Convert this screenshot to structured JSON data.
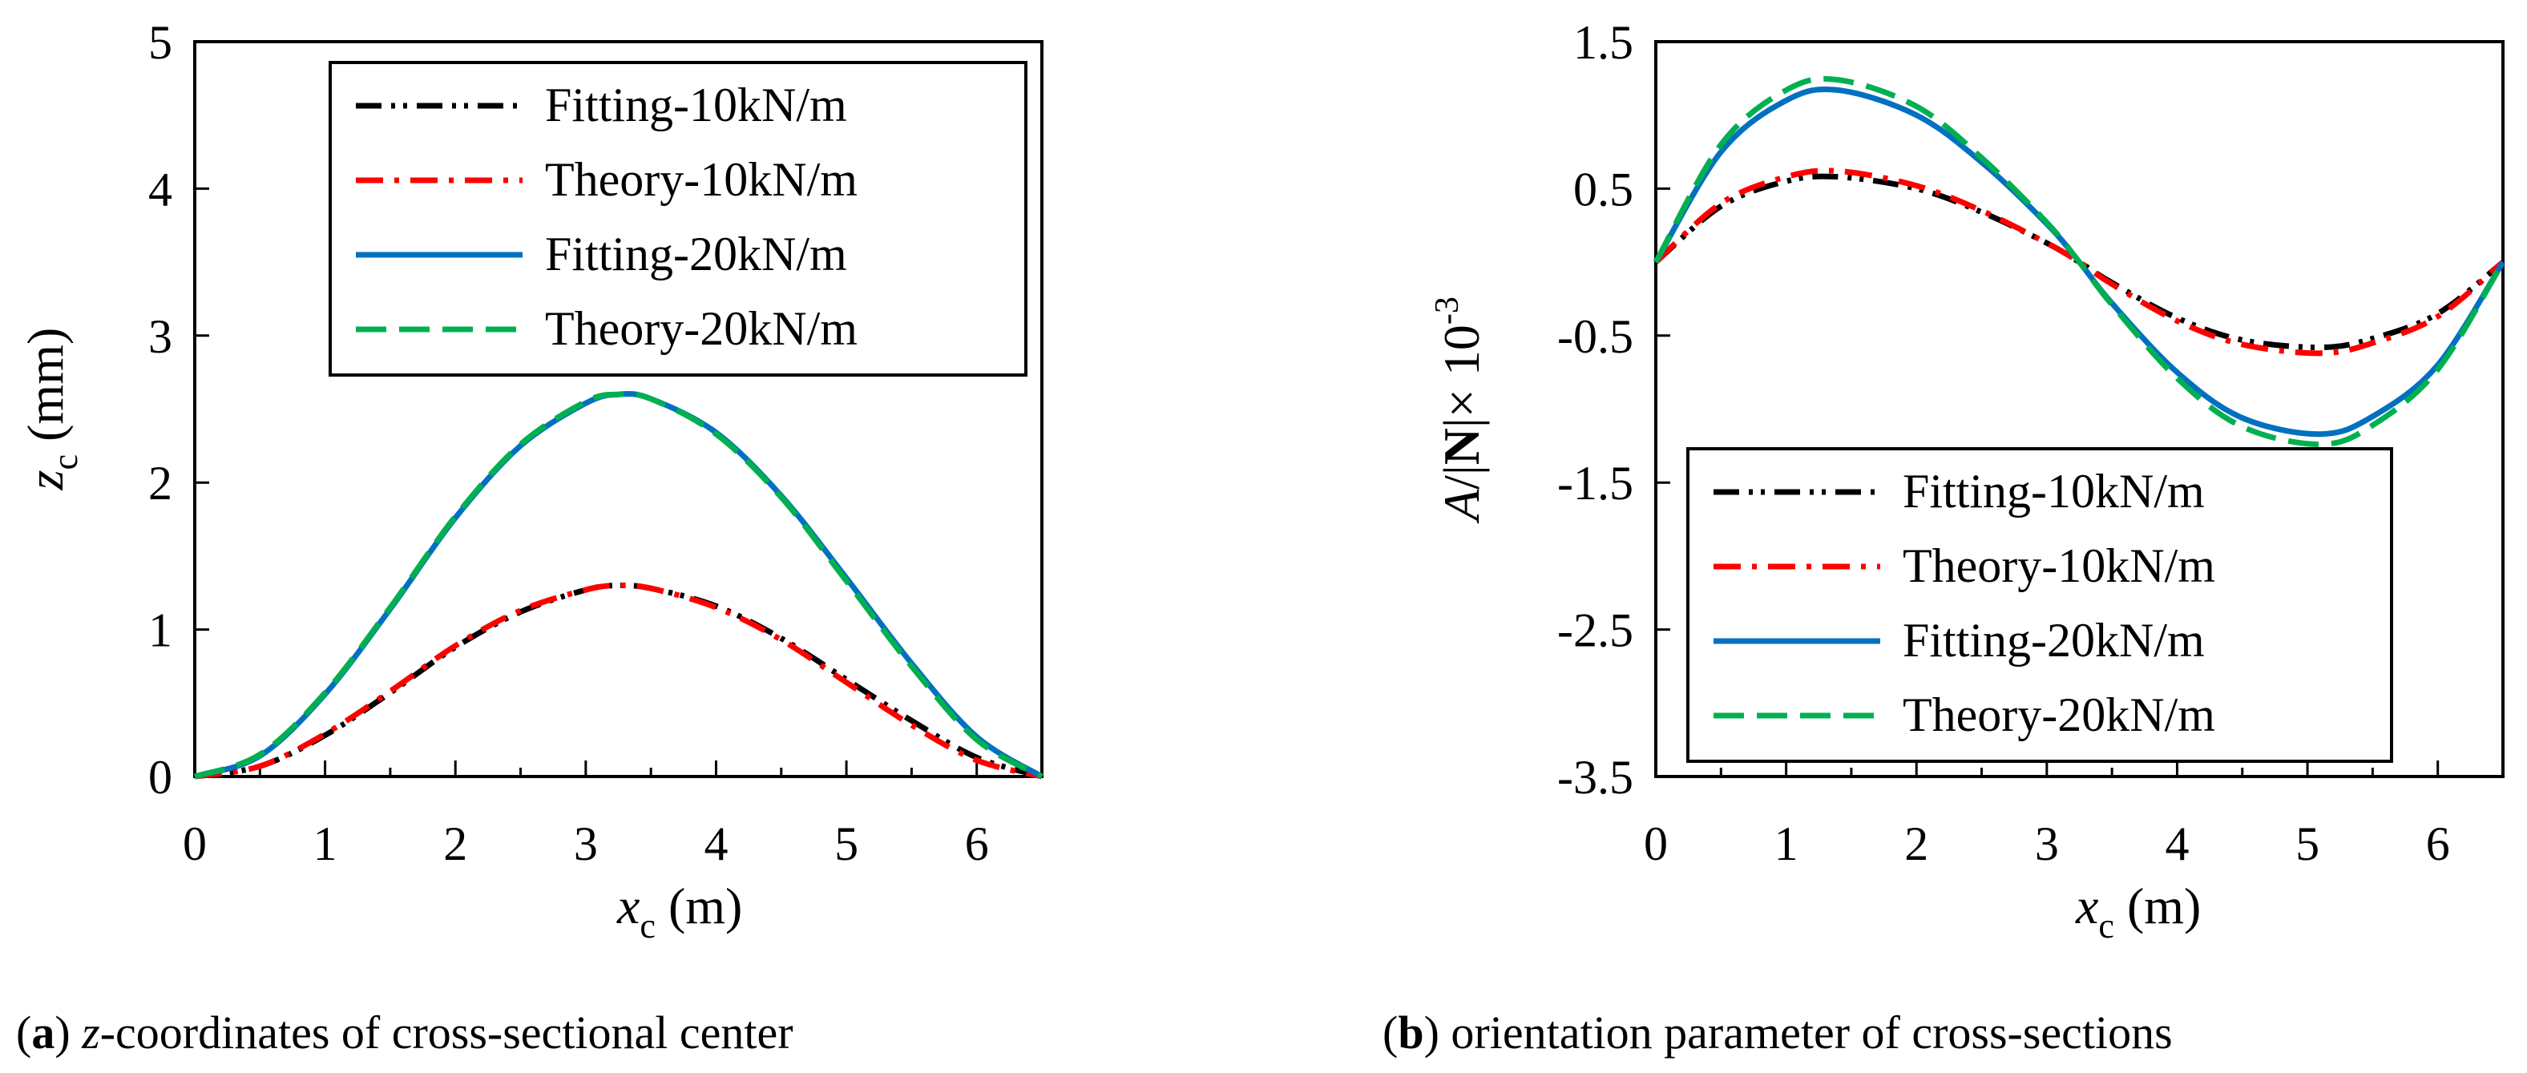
{
  "chart_data": [
    {
      "type": "line",
      "caption": {
        "label": "a",
        "text": " z-coordinates of cross-sectional center"
      },
      "xlabel": {
        "var": "x",
        "sub": "c",
        "unit": "(m)"
      },
      "ylabel": {
        "var": "z",
        "sub": "c",
        "unit": "(mm)"
      },
      "xlim": [
        0,
        6.5
      ],
      "ylim": [
        0,
        5
      ],
      "xticks": [
        0,
        1,
        2,
        3,
        4,
        5,
        6
      ],
      "yticks": [
        0,
        1,
        2,
        3,
        4,
        5
      ],
      "ytick_labels": [
        "0",
        "1",
        "2",
        "3",
        "4",
        "5"
      ],
      "legend_position": "top-right",
      "series": [
        {
          "name": "Fitting-10kN/m",
          "color": "#000000",
          "dash": "dash-dot-dot",
          "x": [
            0,
            0.5,
            1,
            1.5,
            2,
            2.5,
            3,
            3.25,
            3.5,
            4,
            4.5,
            5,
            5.5,
            6,
            6.5
          ],
          "y": [
            0,
            0.07,
            0.28,
            0.57,
            0.88,
            1.12,
            1.27,
            1.3,
            1.28,
            1.16,
            0.94,
            0.66,
            0.38,
            0.13,
            0
          ]
        },
        {
          "name": "Theory-10kN/m",
          "color": "#ff0000",
          "dash": "dash-dot",
          "x": [
            0,
            0.5,
            1,
            1.5,
            2,
            2.5,
            3,
            3.25,
            3.5,
            4,
            4.5,
            5,
            5.5,
            6,
            6.5
          ],
          "y": [
            0,
            0.07,
            0.29,
            0.58,
            0.89,
            1.13,
            1.27,
            1.3,
            1.28,
            1.15,
            0.93,
            0.64,
            0.35,
            0.11,
            0
          ]
        },
        {
          "name": "Fitting-20kN/m",
          "color": "#0070c0",
          "dash": "solid",
          "x": [
            0,
            0.5,
            1,
            1.5,
            2,
            2.5,
            3,
            3.25,
            3.5,
            4,
            4.5,
            5,
            5.5,
            6,
            6.5
          ],
          "y": [
            0,
            0.14,
            0.56,
            1.14,
            1.76,
            2.25,
            2.54,
            2.6,
            2.57,
            2.34,
            1.91,
            1.35,
            0.77,
            0.27,
            0
          ]
        },
        {
          "name": "Theory-20kN/m",
          "color": "#00b050",
          "dash": "dash",
          "x": [
            0,
            0.5,
            1,
            1.5,
            2,
            2.5,
            3,
            3.25,
            3.5,
            4,
            4.5,
            5,
            5.5,
            6,
            6.5
          ],
          "y": [
            0,
            0.15,
            0.57,
            1.15,
            1.77,
            2.26,
            2.55,
            2.6,
            2.57,
            2.33,
            1.9,
            1.33,
            0.75,
            0.25,
            0
          ]
        }
      ]
    },
    {
      "type": "line",
      "caption": {
        "label": "b",
        "text": " orientation parameter of cross-sections"
      },
      "xlabel": {
        "var": "x",
        "sub": "c",
        "unit": "(m)"
      },
      "ylabel": {
        "pre": "A",
        "mid": "/|",
        "bold": "N",
        "post": "|× 10",
        "sup": "-3"
      },
      "xlim": [
        0,
        6.5
      ],
      "ylim": [
        -3.5,
        1.5
      ],
      "xticks": [
        0,
        1,
        2,
        3,
        4,
        5,
        6
      ],
      "yticks": [
        -3.5,
        -2.5,
        -1.5,
        -0.5,
        0.5,
        1.5
      ],
      "ytick_labels": [
        "-3.5",
        "-2.5",
        "-1.5",
        "-0.5",
        "0.5",
        "1.5"
      ],
      "legend_position": "bottom-right",
      "series": [
        {
          "name": "Fitting-10kN/m",
          "color": "#000000",
          "dash": "dash-dot-dot",
          "x": [
            0,
            0.5,
            1,
            1.4,
            2,
            2.5,
            3,
            3.25,
            3.5,
            4,
            4.5,
            5.1,
            5.5,
            6,
            6.5
          ],
          "y": [
            0,
            0.38,
            0.55,
            0.58,
            0.5,
            0.34,
            0.13,
            0.0,
            -0.14,
            -0.38,
            -0.53,
            -0.58,
            -0.52,
            -0.35,
            0
          ]
        },
        {
          "name": "Theory-10kN/m",
          "color": "#ff0000",
          "dash": "dash-dot",
          "x": [
            0,
            0.5,
            1,
            1.4,
            2,
            2.5,
            3,
            3.25,
            3.5,
            4,
            4.5,
            5.1,
            5.5,
            6,
            6.5
          ],
          "y": [
            0,
            0.4,
            0.58,
            0.62,
            0.52,
            0.35,
            0.13,
            0.0,
            -0.15,
            -0.4,
            -0.56,
            -0.62,
            -0.55,
            -0.37,
            0
          ]
        },
        {
          "name": "Fitting-20kN/m",
          "color": "#0070c0",
          "dash": "solid",
          "x": [
            0,
            0.5,
            1,
            1.4,
            2,
            2.5,
            3,
            3.25,
            3.5,
            4,
            4.5,
            5.1,
            5.5,
            6,
            6.5
          ],
          "y": [
            0,
            0.75,
            1.1,
            1.17,
            1.0,
            0.68,
            0.26,
            0.0,
            -0.28,
            -0.75,
            -1.06,
            -1.17,
            -1.05,
            -0.7,
            0
          ]
        },
        {
          "name": "Theory-20kN/m",
          "color": "#00b050",
          "dash": "dash",
          "x": [
            0,
            0.5,
            1,
            1.4,
            2,
            2.5,
            3,
            3.25,
            3.5,
            4,
            4.5,
            5.1,
            5.5,
            6,
            6.5
          ],
          "y": [
            0,
            0.8,
            1.17,
            1.24,
            1.06,
            0.71,
            0.27,
            0.0,
            -0.29,
            -0.79,
            -1.12,
            -1.24,
            -1.11,
            -0.73,
            0
          ]
        }
      ]
    }
  ]
}
